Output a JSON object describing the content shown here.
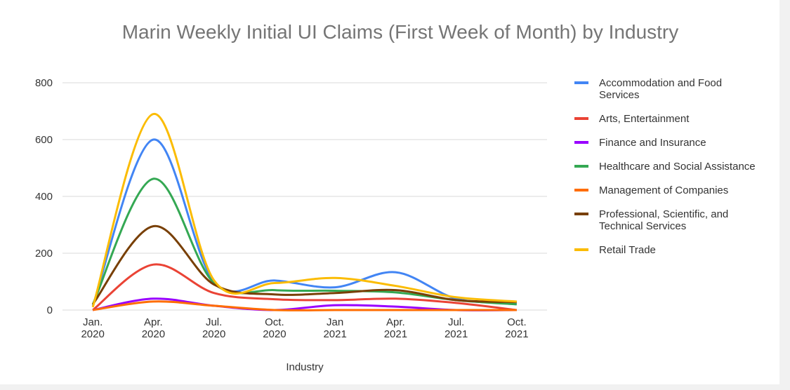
{
  "chart_data": {
    "type": "line",
    "title": "Marin Weekly Initial UI Claims (First Week of Month) by Industry",
    "x_label": "Industry",
    "categories": [
      "Jan. 2020",
      "Apr. 2020",
      "Jul. 2020",
      "Oct. 2020",
      "Jan 2021",
      "Apr. 2021",
      "Jul. 2021",
      "Oct. 2021"
    ],
    "series": [
      {
        "name": "Accommodation and Food Services",
        "color": "#4285f4",
        "values": [
          15,
          600,
          100,
          104,
          80,
          133,
          40,
          25
        ]
      },
      {
        "name": "Arts, Entertainment",
        "color": "#ea4335",
        "values": [
          0,
          160,
          60,
          38,
          35,
          40,
          25,
          0
        ]
      },
      {
        "name": "Finance and Insurance",
        "color": "#9900ff",
        "values": [
          0,
          40,
          15,
          0,
          17,
          12,
          0,
          0
        ]
      },
      {
        "name": "Healthcare and Social Assistance",
        "color": "#34a853",
        "values": [
          20,
          462,
          95,
          70,
          68,
          62,
          35,
          20
        ]
      },
      {
        "name": "Management of Companies",
        "color": "#ff6d01",
        "values": [
          0,
          30,
          15,
          0,
          0,
          0,
          0,
          0
        ]
      },
      {
        "name": "Professional, Scientific, and Technical Services",
        "color": "#783f04",
        "values": [
          20,
          295,
          90,
          55,
          60,
          70,
          35,
          28
        ]
      },
      {
        "name": "Retail Trade",
        "color": "#fbbc04",
        "values": [
          10,
          690,
          105,
          95,
          113,
          85,
          45,
          30
        ]
      }
    ],
    "ylim": [
      0,
      800
    ],
    "yticks": [
      0,
      200,
      400,
      600,
      800
    ],
    "grid": true,
    "smooth": true,
    "legend": "right"
  }
}
